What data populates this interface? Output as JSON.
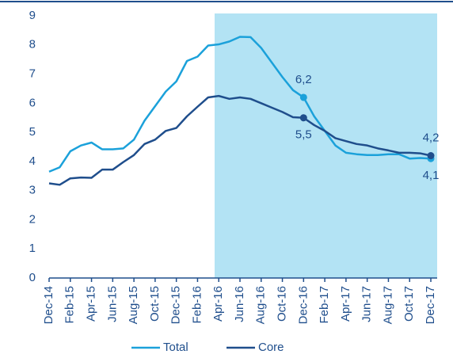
{
  "chart_data": {
    "type": "line",
    "categories": [
      "Dec-14",
      null,
      "Feb-15",
      null,
      "Apr-15",
      null,
      "Jun-15",
      null,
      "Aug-15",
      null,
      "Oct-15",
      null,
      "Dec-15",
      null,
      "Feb-16",
      null,
      "Apr-16",
      null,
      "Jun-16",
      null,
      "Aug-16",
      null,
      "Oct-16",
      null,
      "Dec-16",
      null,
      "Feb-17",
      null,
      "Apr-17",
      null,
      "Jun-17",
      null,
      "Aug-17",
      null,
      "Oct-17",
      null,
      "Dec-17"
    ],
    "series": [
      {
        "name": "Total",
        "color": "#1ba1da",
        "values": [
          3.65,
          3.8,
          4.35,
          4.55,
          4.65,
          4.42,
          4.42,
          4.45,
          4.75,
          5.4,
          5.9,
          6.4,
          6.75,
          7.45,
          7.6,
          7.98,
          8.02,
          8.12,
          8.28,
          8.27,
          7.9,
          7.4,
          6.9,
          6.45,
          6.2,
          5.55,
          5.05,
          4.55,
          4.3,
          4.25,
          4.22,
          4.22,
          4.25,
          4.25,
          4.1,
          4.12,
          4.1
        ],
        "value_labels": [
          null,
          null,
          null,
          null,
          null,
          null,
          null,
          null,
          null,
          null,
          null,
          null,
          null,
          null,
          null,
          null,
          null,
          null,
          null,
          null,
          null,
          null,
          null,
          null,
          "6,2",
          null,
          null,
          null,
          null,
          null,
          null,
          null,
          null,
          null,
          null,
          null,
          "4,1"
        ]
      },
      {
        "name": "Core",
        "color": "#1f4e8c",
        "values": [
          3.25,
          3.2,
          3.42,
          3.45,
          3.44,
          3.72,
          3.72,
          3.98,
          4.22,
          4.6,
          4.75,
          5.05,
          5.15,
          5.55,
          5.88,
          6.2,
          6.25,
          6.15,
          6.2,
          6.15,
          6.0,
          5.85,
          5.7,
          5.52,
          5.5,
          5.25,
          5.05,
          4.8,
          4.7,
          4.6,
          4.55,
          4.45,
          4.38,
          4.3,
          4.3,
          4.28,
          4.2
        ],
        "value_labels": [
          null,
          null,
          null,
          null,
          null,
          null,
          null,
          null,
          null,
          null,
          null,
          null,
          null,
          null,
          null,
          null,
          null,
          null,
          null,
          null,
          null,
          null,
          null,
          null,
          "5,5",
          null,
          null,
          null,
          null,
          null,
          null,
          null,
          null,
          null,
          null,
          null,
          "4,2"
        ]
      }
    ],
    "ylim": [
      0,
      9
    ],
    "yticks": [
      0,
      1,
      2,
      3,
      4,
      5,
      6,
      7,
      8,
      9
    ],
    "legend": "bottom"
  }
}
